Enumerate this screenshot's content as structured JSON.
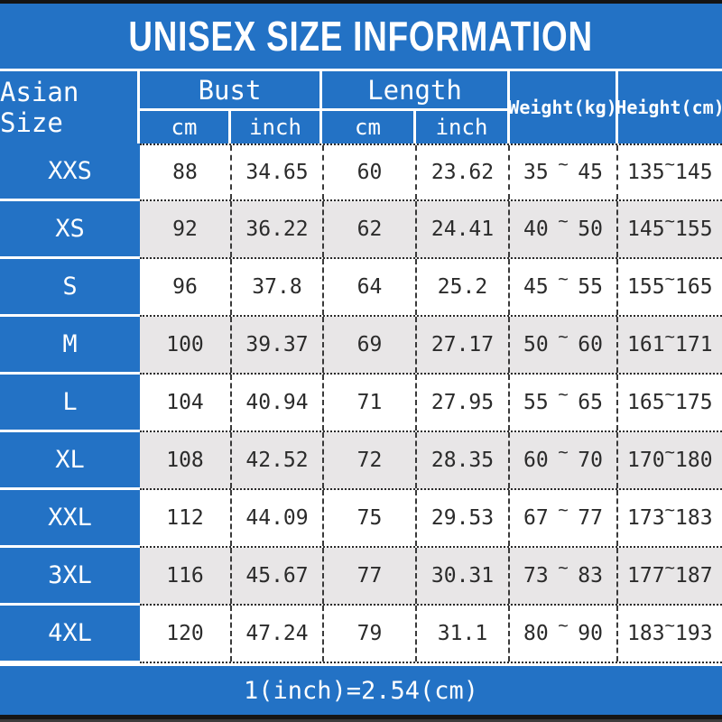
{
  "title": "UNISEX SIZE INFORMATION",
  "header": {
    "size_col": "Asian Size",
    "bust": {
      "label": "Bust",
      "sub_cm": "cm",
      "sub_inch": "inch"
    },
    "length": {
      "label": "Length",
      "sub_cm": "cm",
      "sub_inch": "inch"
    },
    "weight": "Weight(kg)",
    "height": "Height(cm)"
  },
  "tilde_symbol": "~",
  "rows": [
    {
      "size": "XXS",
      "bust_cm": "88",
      "bust_inch": "34.65",
      "length_cm": "60",
      "length_inch": "23.62",
      "weight_min": "35",
      "weight_max": "45",
      "height_min": "135",
      "height_max": "145"
    },
    {
      "size": "XS",
      "bust_cm": "92",
      "bust_inch": "36.22",
      "length_cm": "62",
      "length_inch": "24.41",
      "weight_min": "40",
      "weight_max": "50",
      "height_min": "145",
      "height_max": "155"
    },
    {
      "size": "S",
      "bust_cm": "96",
      "bust_inch": "37.8",
      "length_cm": "64",
      "length_inch": "25.2",
      "weight_min": "45",
      "weight_max": "55",
      "height_min": "155",
      "height_max": "165"
    },
    {
      "size": "M",
      "bust_cm": "100",
      "bust_inch": "39.37",
      "length_cm": "69",
      "length_inch": "27.17",
      "weight_min": "50",
      "weight_max": "60",
      "height_min": "161",
      "height_max": "171"
    },
    {
      "size": "L",
      "bust_cm": "104",
      "bust_inch": "40.94",
      "length_cm": "71",
      "length_inch": "27.95",
      "weight_min": "55",
      "weight_max": "65",
      "height_min": "165",
      "height_max": "175"
    },
    {
      "size": "XL",
      "bust_cm": "108",
      "bust_inch": "42.52",
      "length_cm": "72",
      "length_inch": "28.35",
      "weight_min": "60",
      "weight_max": "70",
      "height_min": "170",
      "height_max": "180"
    },
    {
      "size": "XXL",
      "bust_cm": "112",
      "bust_inch": "44.09",
      "length_cm": "75",
      "length_inch": "29.53",
      "weight_min": "67",
      "weight_max": "77",
      "height_min": "173",
      "height_max": "183"
    },
    {
      "size": "3XL",
      "bust_cm": "116",
      "bust_inch": "45.67",
      "length_cm": "77",
      "length_inch": "30.31",
      "weight_min": "73",
      "weight_max": "83",
      "height_min": "177",
      "height_max": "187"
    },
    {
      "size": "4XL",
      "bust_cm": "120",
      "bust_inch": "47.24",
      "length_cm": "79",
      "length_inch": "31.1",
      "weight_min": "80",
      "weight_max": "90",
      "height_min": "183",
      "height_max": "193"
    }
  ],
  "footer": "1(inch)=2.54(cm)",
  "colors": {
    "accent_blue": "#2372c5",
    "alt_row": "#e8e6e7",
    "bar_black": "#161616"
  }
}
